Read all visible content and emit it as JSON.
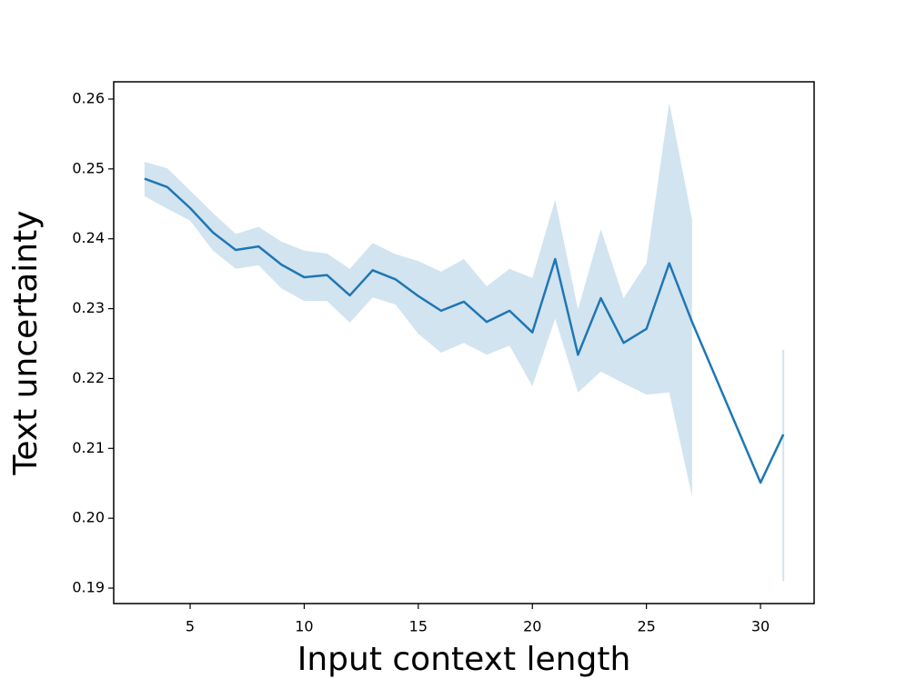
{
  "chart_data": {
    "type": "line",
    "x_label": "Input context length",
    "y_label": "Text uncertainty",
    "color": "#1f77b4",
    "x": [
      3,
      4,
      5,
      6,
      7,
      8,
      9,
      10,
      11,
      12,
      13,
      14,
      15,
      16,
      17,
      18,
      19,
      20,
      21,
      22,
      23,
      24,
      25,
      26,
      27,
      30,
      31
    ],
    "values": [
      0.2486,
      0.2474,
      0.2444,
      0.2409,
      0.2384,
      0.2389,
      0.2363,
      0.2345,
      0.2348,
      0.2319,
      0.2355,
      0.2342,
      0.2318,
      0.2297,
      0.231,
      0.2281,
      0.2297,
      0.2266,
      0.2371,
      0.2234,
      0.2315,
      0.2251,
      0.2271,
      0.2365,
      0.2281,
      0.2051,
      0.212
    ],
    "upper": [
      0.251,
      0.2501,
      0.2469,
      0.2437,
      0.2407,
      0.2417,
      0.2396,
      0.2383,
      0.2379,
      0.2357,
      0.2394,
      0.2378,
      0.2368,
      0.2353,
      0.2371,
      0.2332,
      0.2357,
      0.2344,
      0.2456,
      0.2299,
      0.2414,
      0.2315,
      0.2365,
      0.2595,
      0.2428,
      null,
      0.2241
    ],
    "lower": [
      0.2461,
      0.2443,
      0.2426,
      0.2383,
      0.2357,
      0.2362,
      0.2329,
      0.2311,
      0.2311,
      0.228,
      0.2316,
      0.2306,
      0.2264,
      0.2237,
      0.2251,
      0.2234,
      0.2247,
      0.2189,
      0.2286,
      0.218,
      0.221,
      0.2193,
      0.2177,
      0.218,
      0.2031,
      null,
      0.191
    ],
    "xlim": [
      1.65,
      32.35
    ],
    "xticks": [
      5,
      10,
      15,
      20,
      25,
      30
    ],
    "ylim": [
      0.18779,
      0.26247
    ],
    "yticks": [
      {
        "value": 0.19,
        "label": "0.19"
      },
      {
        "value": 0.2,
        "label": "0.20"
      },
      {
        "value": 0.21,
        "label": "0.21"
      },
      {
        "value": 0.22,
        "label": "0.22"
      },
      {
        "value": 0.23,
        "label": "0.23"
      },
      {
        "value": 0.24,
        "label": "0.24"
      },
      {
        "value": 0.25,
        "label": "0.25"
      },
      {
        "value": 0.26,
        "label": "0.26"
      }
    ]
  }
}
